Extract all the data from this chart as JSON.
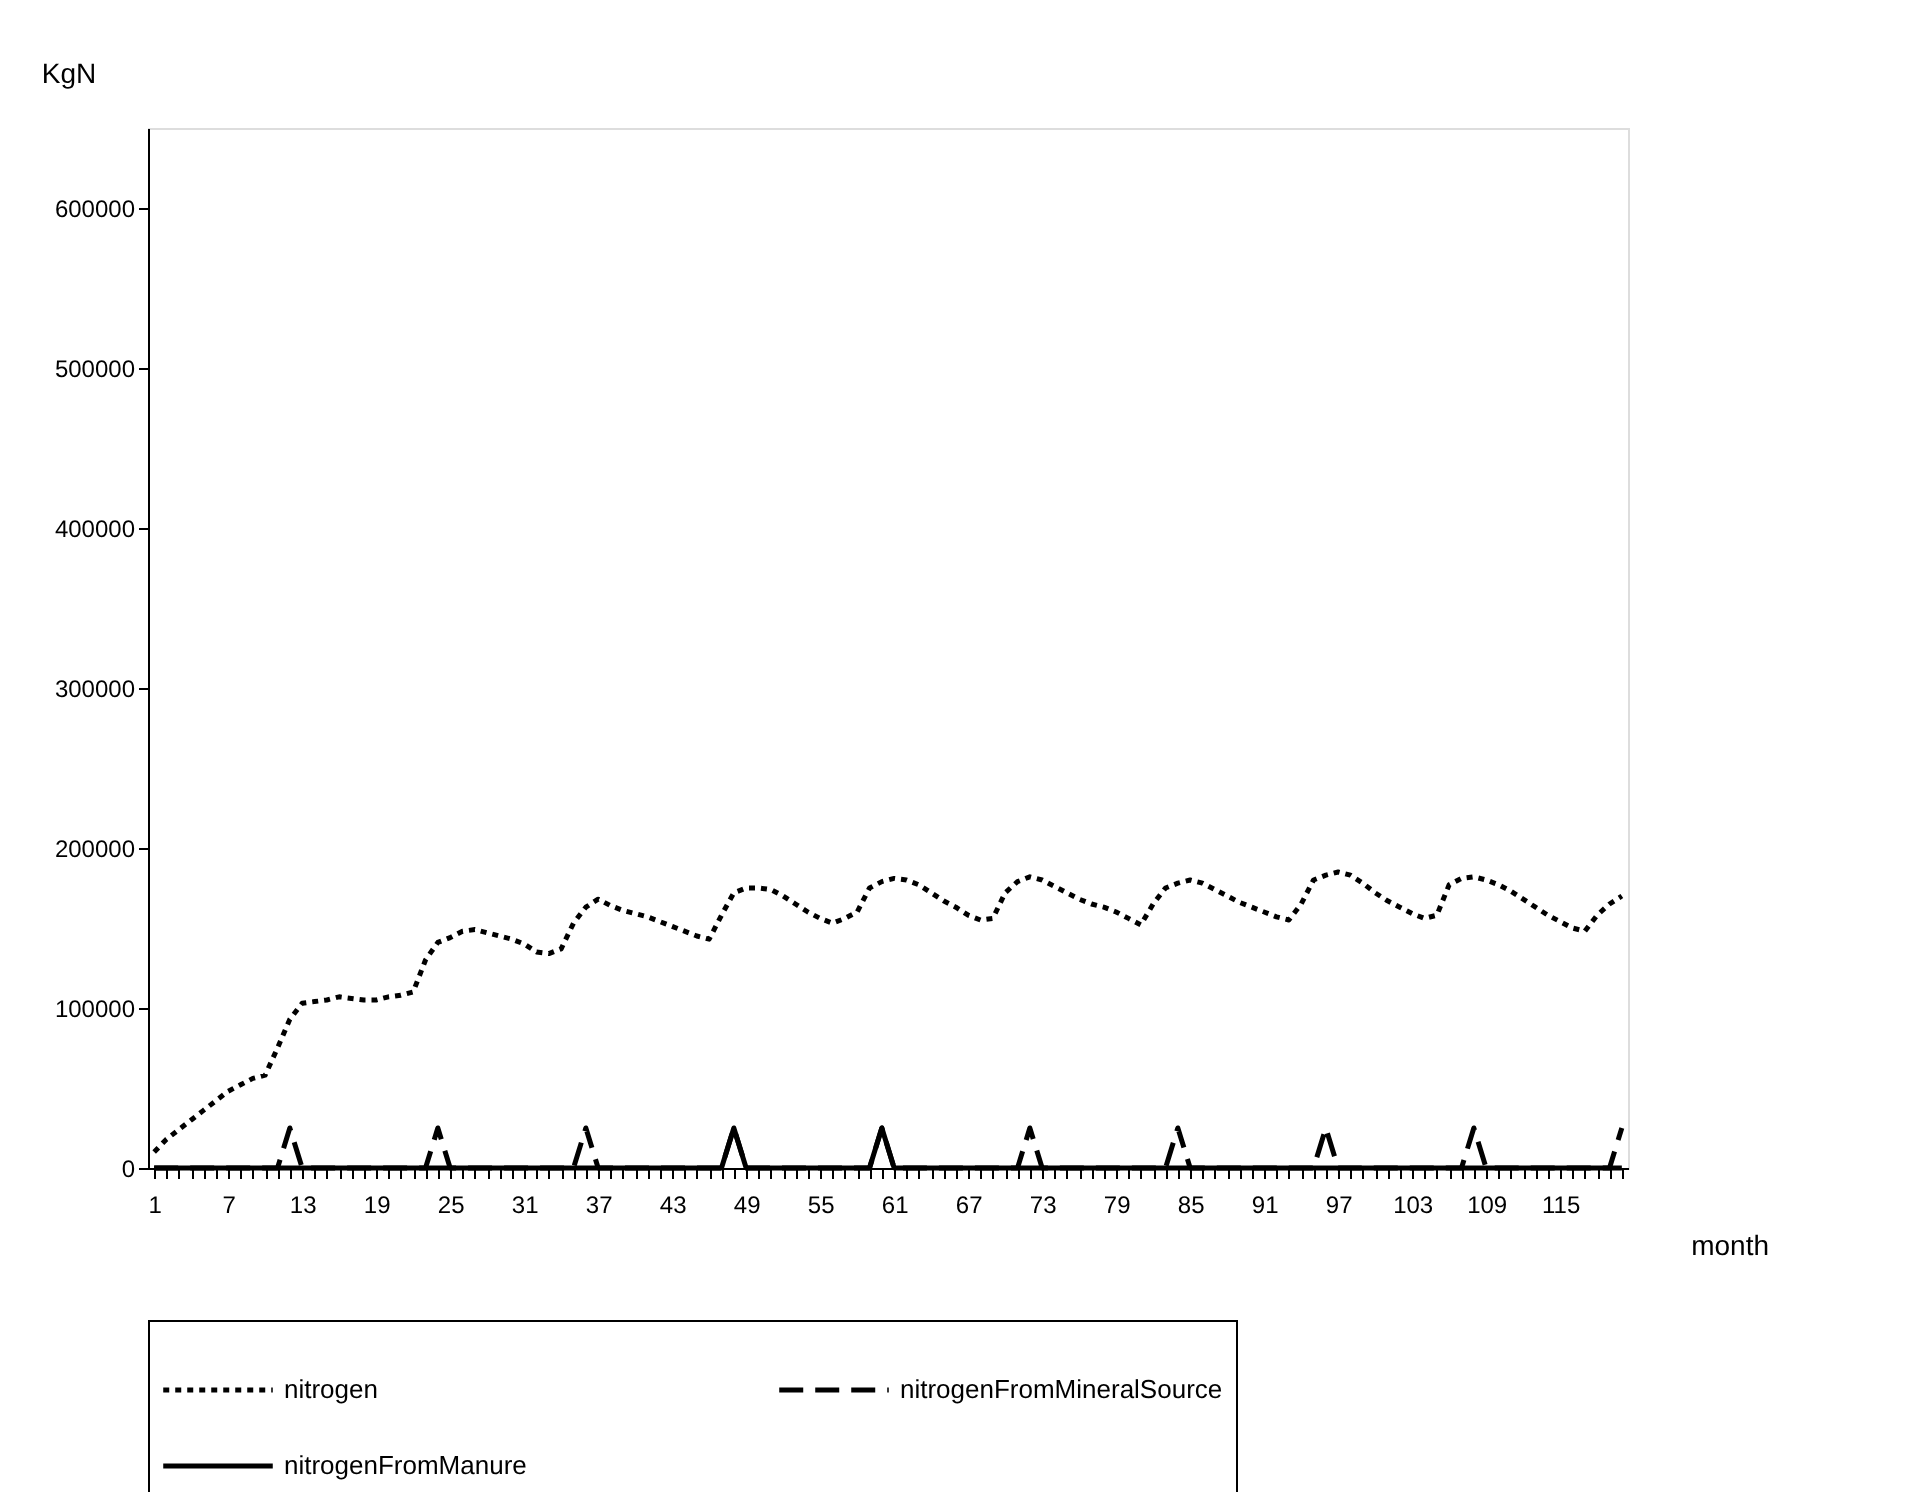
{
  "chart_data": {
    "type": "line",
    "xlabel": "month",
    "ylabel": "KgN",
    "categories": [
      "1",
      null,
      null,
      null,
      null,
      null,
      "7",
      null,
      null,
      null,
      null,
      null,
      "13",
      null,
      null,
      null,
      null,
      null,
      "19",
      null,
      null,
      null,
      null,
      null,
      "25",
      null,
      null,
      null,
      null,
      null,
      "31",
      null,
      null,
      null,
      null,
      null,
      "37",
      null,
      null,
      null,
      null,
      null,
      "43",
      null,
      null,
      null,
      null,
      null,
      "49",
      null,
      null,
      null,
      null,
      null,
      "55",
      null,
      null,
      null,
      null,
      null,
      "61",
      null,
      null,
      null,
      null,
      null,
      "67",
      null,
      null,
      null,
      null,
      null,
      "73",
      null,
      null,
      null,
      null,
      null,
      "79",
      null,
      null,
      null,
      null,
      null,
      "85",
      null,
      null,
      null,
      null,
      null,
      "91",
      null,
      null,
      null,
      null,
      null,
      "97",
      null,
      null,
      null,
      null,
      null,
      "103",
      null,
      null,
      null,
      null,
      null,
      "109",
      null,
      null,
      null,
      null,
      null,
      "115",
      null,
      null,
      null,
      null,
      null
    ],
    "series": [
      {
        "name": "nitrogen",
        "color": "#000000",
        "line_style": "dotted",
        "values": [
          10000,
          18000,
          24000,
          30000,
          36000,
          42000,
          48000,
          52000,
          56000,
          58000,
          75000,
          93000,
          103000,
          104000,
          105000,
          107000,
          106000,
          105000,
          105000,
          107000,
          108000,
          110000,
          130000,
          141000,
          144000,
          148000,
          149000,
          147000,
          145000,
          143000,
          140000,
          135000,
          134000,
          137000,
          153000,
          163000,
          168000,
          164000,
          161000,
          159000,
          157000,
          154000,
          151000,
          148000,
          145000,
          143000,
          158000,
          172000,
          175000,
          175000,
          174000,
          170000,
          165000,
          160000,
          156000,
          153000,
          156000,
          160000,
          175000,
          179000,
          181000,
          180000,
          177000,
          172000,
          167000,
          163000,
          158000,
          155000,
          156000,
          172000,
          179000,
          182000,
          180000,
          176000,
          172000,
          168000,
          165000,
          163000,
          160000,
          156000,
          152000,
          165000,
          175000,
          178000,
          180000,
          178000,
          174000,
          170000,
          166000,
          163000,
          160000,
          157000,
          155000,
          165000,
          180000,
          183000,
          185000,
          183000,
          178000,
          172000,
          167000,
          163000,
          159000,
          156000,
          158000,
          177000,
          181000,
          182000,
          180000,
          177000,
          173000,
          168000,
          163000,
          158000,
          154000,
          150000,
          148000,
          158000,
          165000,
          170000
        ]
      },
      {
        "name": "nitrogenFromMineralSource",
        "color": "#000000",
        "line_style": "dashed",
        "values": [
          0,
          0,
          0,
          0,
          0,
          0,
          0,
          0,
          0,
          0,
          0,
          25000,
          0,
          0,
          0,
          0,
          0,
          0,
          0,
          0,
          0,
          0,
          0,
          25000,
          0,
          0,
          0,
          0,
          0,
          0,
          0,
          0,
          0,
          0,
          0,
          25000,
          0,
          0,
          0,
          0,
          0,
          0,
          0,
          0,
          0,
          0,
          0,
          25000,
          0,
          0,
          0,
          0,
          0,
          0,
          0,
          0,
          0,
          0,
          0,
          25000,
          0,
          0,
          0,
          0,
          0,
          0,
          0,
          0,
          0,
          0,
          0,
          25000,
          0,
          0,
          0,
          0,
          0,
          0,
          0,
          0,
          0,
          0,
          0,
          25000,
          0,
          0,
          0,
          0,
          0,
          0,
          0,
          0,
          0,
          0,
          0,
          25000,
          0,
          0,
          0,
          0,
          0,
          0,
          0,
          0,
          0,
          0,
          0,
          25000,
          0,
          0,
          0,
          0,
          0,
          0,
          0,
          0,
          0,
          0,
          0,
          25000
        ]
      },
      {
        "name": "nitrogenFromManure",
        "color": "#000000",
        "line_style": "solid",
        "values": [
          0,
          0,
          0,
          0,
          0,
          0,
          0,
          0,
          0,
          0,
          0,
          0,
          0,
          0,
          0,
          0,
          0,
          0,
          0,
          0,
          0,
          0,
          0,
          0,
          0,
          0,
          0,
          0,
          0,
          0,
          0,
          0,
          0,
          0,
          0,
          0,
          0,
          0,
          0,
          0,
          0,
          0,
          0,
          0,
          0,
          0,
          0,
          25000,
          0,
          0,
          0,
          0,
          0,
          0,
          0,
          0,
          0,
          0,
          0,
          25000,
          0,
          0,
          0,
          0,
          0,
          0,
          0,
          0,
          0,
          0,
          0,
          0,
          0,
          0,
          0,
          0,
          0,
          0,
          0,
          0,
          0,
          0,
          0,
          0,
          0,
          0,
          0,
          0,
          0,
          0,
          0,
          0,
          0,
          0,
          0,
          0,
          0,
          0,
          0,
          0,
          0,
          0,
          0,
          0,
          0,
          0,
          0,
          0,
          0,
          0,
          0,
          0,
          0,
          0,
          0,
          0,
          0,
          0,
          0,
          0
        ]
      }
    ],
    "ylim": [
      0,
      650000
    ],
    "yticks": [
      0,
      100000,
      200000,
      300000,
      400000,
      500000,
      600000
    ],
    "grid": false,
    "legend": "bottom"
  }
}
